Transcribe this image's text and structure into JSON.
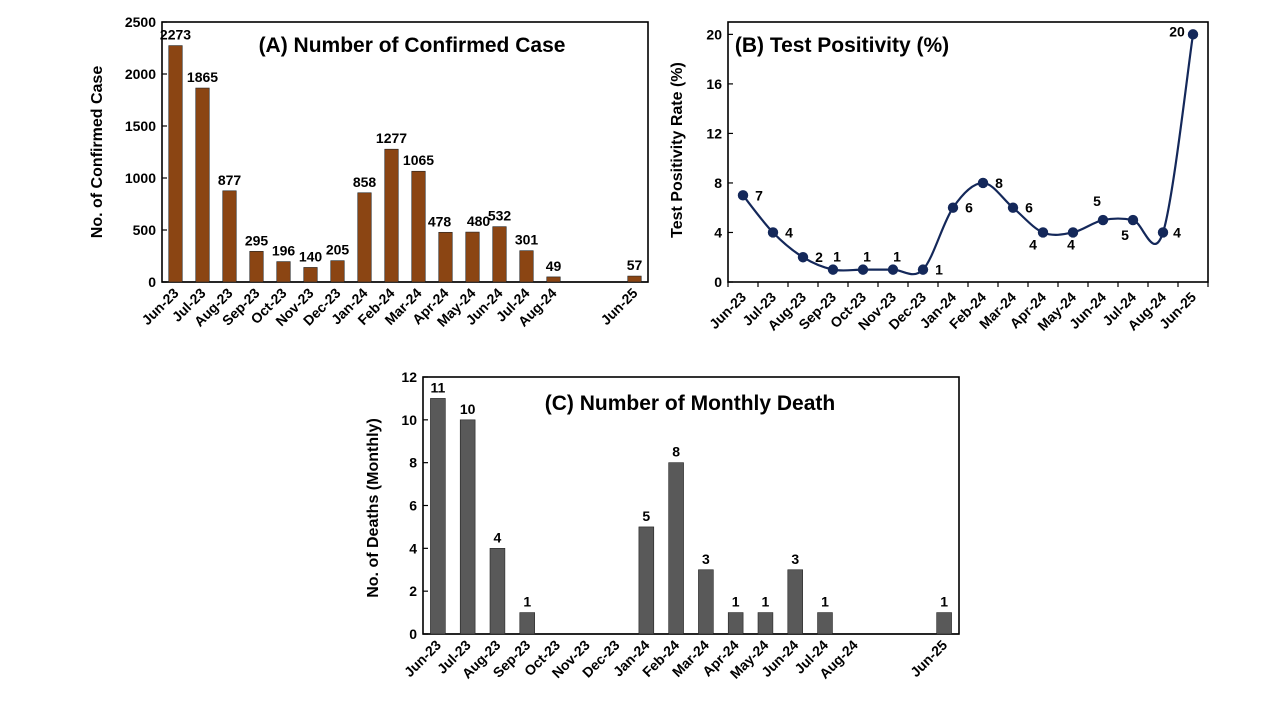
{
  "chart_data": [
    {
      "id": "A",
      "type": "bar",
      "title": "(A) Number of Confirmed Case",
      "ylabel": "No. of Confirmed Case",
      "xlabel": "",
      "ylim": [
        0,
        2500
      ],
      "yticks": [
        0,
        500,
        1000,
        1500,
        2000,
        2500
      ],
      "categories": [
        "Jun-23",
        "Jul-23",
        "Aug-23",
        "Sep-23",
        "Oct-23",
        "Nov-23",
        "Dec-23",
        "Jan-24",
        "Feb-24",
        "Mar-24",
        "Apr-24",
        "May-24",
        "Jun-24",
        "Jul-24",
        "Aug-24",
        "",
        "",
        "Jun-25"
      ],
      "values": [
        2273,
        1865,
        877,
        295,
        196,
        140,
        205,
        858,
        1277,
        1065,
        478,
        480,
        532,
        301,
        49,
        null,
        null,
        57
      ],
      "color": "#8B4513",
      "grid": false,
      "legend": "none"
    },
    {
      "id": "B",
      "type": "line",
      "title": "(B) Test Positivity (%)",
      "ylabel": "Test Positivity Rate (%)",
      "xlabel": "",
      "ylim": [
        0,
        21
      ],
      "yticks": [
        0,
        4,
        8,
        12,
        16,
        20
      ],
      "categories": [
        "Jun-23",
        "Jul-23",
        "Aug-23",
        "Sep-23",
        "Oct-23",
        "Nov-23",
        "Dec-23",
        "Jan-24",
        "Feb-24",
        "Mar-24",
        "Apr-24",
        "May-24",
        "Jun-24",
        "Jul-24",
        "Aug-24",
        "Jun-25"
      ],
      "values": [
        7,
        4,
        2,
        1,
        1,
        1,
        1,
        6,
        8,
        6,
        4,
        4,
        5,
        5,
        4,
        20
      ],
      "color": "#14285A",
      "smooth": true,
      "grid": false,
      "legend": "none"
    },
    {
      "id": "C",
      "type": "bar",
      "title": "(C) Number of Monthly Death",
      "ylabel": "No. of Deaths (Monthly)",
      "xlabel": "",
      "ylim": [
        0,
        12
      ],
      "yticks": [
        0,
        2,
        4,
        6,
        8,
        10,
        12
      ],
      "categories": [
        "Jun-23",
        "Jul-23",
        "Aug-23",
        "Sep-23",
        "Oct-23",
        "Nov-23",
        "Dec-23",
        "Jan-24",
        "Feb-24",
        "Mar-24",
        "Apr-24",
        "May-24",
        "Jun-24",
        "Jul-24",
        "Aug-24",
        "",
        "",
        "Jun-25"
      ],
      "values": [
        11,
        10,
        4,
        1,
        null,
        null,
        null,
        5,
        8,
        3,
        1,
        1,
        3,
        1,
        null,
        null,
        null,
        1
      ],
      "color": "#595959",
      "grid": false,
      "legend": "none"
    }
  ]
}
